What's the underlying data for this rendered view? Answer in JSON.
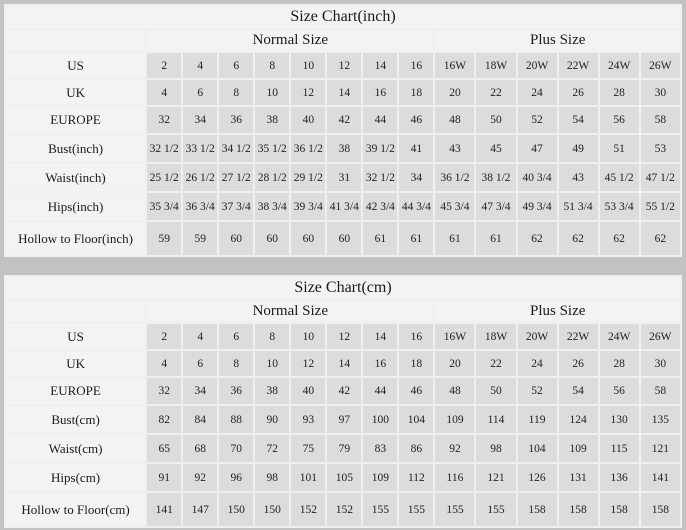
{
  "colors": {
    "page_background": "#c2c2c2",
    "data_cell_background": "#dcdcdc",
    "label_cell_background": "#f3f3f3",
    "grid_line": "#efefef",
    "text": "#1a1a1a"
  },
  "chart_data": [
    {
      "type": "table",
      "title": "Size Chart(inch)",
      "column_groups": [
        {
          "label": "",
          "span": 1
        },
        {
          "label": "Normal Size",
          "span": 8
        },
        {
          "label": "Plus Size",
          "span": 6
        }
      ],
      "rows": [
        {
          "label": "US",
          "values": [
            "2",
            "4",
            "6",
            "8",
            "10",
            "12",
            "14",
            "16",
            "16W",
            "18W",
            "20W",
            "22W",
            "24W",
            "26W"
          ]
        },
        {
          "label": "UK",
          "values": [
            "4",
            "6",
            "8",
            "10",
            "12",
            "14",
            "16",
            "18",
            "20",
            "22",
            "24",
            "26",
            "28",
            "30"
          ]
        },
        {
          "label": "EUROPE",
          "values": [
            "32",
            "34",
            "36",
            "38",
            "40",
            "42",
            "44",
            "46",
            "48",
            "50",
            "52",
            "54",
            "56",
            "58"
          ]
        },
        {
          "label": "Bust(inch)",
          "values": [
            "32 1/2",
            "33 1/2",
            "34 1/2",
            "35 1/2",
            "36 1/2",
            "38",
            "39 1/2",
            "41",
            "43",
            "45",
            "47",
            "49",
            "51",
            "53"
          ]
        },
        {
          "label": "Waist(inch)",
          "values": [
            "25 1/2",
            "26 1/2",
            "27 1/2",
            "28 1/2",
            "29 1/2",
            "31",
            "32 1/2",
            "34",
            "36 1/2",
            "38 1/2",
            "40 3/4",
            "43",
            "45 1/2",
            "47 1/2"
          ]
        },
        {
          "label": "Hips(inch)",
          "values": [
            "35 3/4",
            "36 3/4",
            "37 3/4",
            "38 3/4",
            "39 3/4",
            "41 3/4",
            "42 3/4",
            "44 3/4",
            "45 3/4",
            "47 3/4",
            "49 3/4",
            "51 3/4",
            "53 3/4",
            "55 1/2"
          ]
        },
        {
          "label": "Hollow to Floor(inch)",
          "values": [
            "59",
            "59",
            "60",
            "60",
            "60",
            "60",
            "61",
            "61",
            "61",
            "61",
            "62",
            "62",
            "62",
            "62"
          ]
        }
      ]
    },
    {
      "type": "table",
      "title": "Size Chart(cm)",
      "column_groups": [
        {
          "label": "",
          "span": 1
        },
        {
          "label": "Normal Size",
          "span": 8
        },
        {
          "label": "Plus Size",
          "span": 6
        }
      ],
      "rows": [
        {
          "label": "US",
          "values": [
            "2",
            "4",
            "6",
            "8",
            "10",
            "12",
            "14",
            "16",
            "16W",
            "18W",
            "20W",
            "22W",
            "24W",
            "26W"
          ]
        },
        {
          "label": "UK",
          "values": [
            "4",
            "6",
            "8",
            "10",
            "12",
            "14",
            "16",
            "18",
            "20",
            "22",
            "24",
            "26",
            "28",
            "30"
          ]
        },
        {
          "label": "EUROPE",
          "values": [
            "32",
            "34",
            "36",
            "38",
            "40",
            "42",
            "44",
            "46",
            "48",
            "50",
            "52",
            "54",
            "56",
            "58"
          ]
        },
        {
          "label": "Bust(cm)",
          "values": [
            "82",
            "84",
            "88",
            "90",
            "93",
            "97",
            "100",
            "104",
            "109",
            "114",
            "119",
            "124",
            "130",
            "135"
          ]
        },
        {
          "label": "Waist(cm)",
          "values": [
            "65",
            "68",
            "70",
            "72",
            "75",
            "79",
            "83",
            "86",
            "92",
            "98",
            "104",
            "109",
            "115",
            "121"
          ]
        },
        {
          "label": "Hips(cm)",
          "values": [
            "91",
            "92",
            "96",
            "98",
            "101",
            "105",
            "109",
            "112",
            "116",
            "121",
            "126",
            "131",
            "136",
            "141"
          ]
        },
        {
          "label": "Hollow to Floor(cm)",
          "values": [
            "141",
            "147",
            "150",
            "150",
            "152",
            "152",
            "155",
            "155",
            "155",
            "155",
            "158",
            "158",
            "158",
            "158"
          ]
        }
      ]
    }
  ]
}
